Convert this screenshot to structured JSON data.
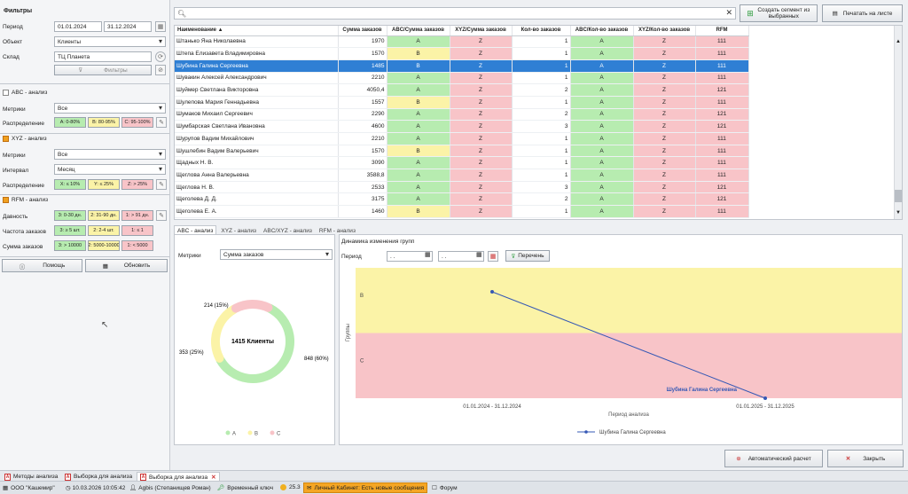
{
  "filters": {
    "title": "Фильтры",
    "period_label": "Период",
    "date_from": "01.01.2024",
    "date_to": "31.12.2024",
    "object_label": "Объект",
    "object_value": "Клиенты",
    "warehouse_label": "Склад",
    "warehouse_value": "ТЦ Планета",
    "filters_button": "Фильтры"
  },
  "abc": {
    "title": "ABC - анализ",
    "metrics_label": "Метрики",
    "metrics_value": "Все",
    "distribution_label": "Распределение",
    "chips": [
      "A: 0-80%",
      "B: 80-95%",
      "C: 95-100%"
    ]
  },
  "xyz": {
    "title": "XYZ - анализ",
    "metrics_label": "Метрики",
    "metrics_value": "Все",
    "interval_label": "Интервал",
    "interval_value": "Месяц",
    "distribution_label": "Распределение",
    "chips": [
      "X: ≤ 10%",
      "Y: ≤ 25%",
      "Z: > 25%"
    ]
  },
  "rfm": {
    "title": "RFM - анализ",
    "recency_label": "Давность",
    "recency_chips": [
      "3: 0-30 дн.",
      "2: 31-90 дн.",
      "1: > 91 дн."
    ],
    "frequency_label": "Частота заказов",
    "frequency_chips": [
      "3: ≥ 5 шт.",
      "2: 2-4 шт.",
      "1: ≤ 1"
    ],
    "monetary_label": "Сумма заказов",
    "monetary_chips": [
      "3: > 10000",
      "2: 5000-10000",
      "1: < 5000"
    ]
  },
  "actions": {
    "help": "Помощь",
    "refresh": "Обновить"
  },
  "toolbar": {
    "create_segment": "Создать сегмент из выбранных",
    "print_sheet": "Печатать на листе",
    "search_placeholder": ""
  },
  "table": {
    "columns": [
      "Наименование ▲",
      "Сумма заказов",
      "ABC/Сумма заказов",
      "XYZ/Сумма заказов",
      "Кол-во заказов",
      "ABC/Кол-во заказов",
      "XYZ/Кол-во заказов",
      "RFM"
    ],
    "rows": [
      {
        "name": "Штанько Яна Николаевна",
        "sum": "1970",
        "abc_sum": "A",
        "xyz_sum": "Z",
        "count": "1",
        "abc_count": "A",
        "xyz_count": "Z",
        "rfm": "111"
      },
      {
        "name": "Штепа Елизавета Владимировна",
        "sum": "1570",
        "abc_sum": "B",
        "xyz_sum": "Z",
        "count": "1",
        "abc_count": "A",
        "xyz_count": "Z",
        "rfm": "111"
      },
      {
        "name": "Шубина Галина Сергеевна",
        "sum": "1485",
        "abc_sum": "B",
        "xyz_sum": "Z",
        "count": "1",
        "abc_count": "A",
        "xyz_count": "Z",
        "rfm": "111"
      },
      {
        "name": "Шувакин Алексей Александрович",
        "sum": "2210",
        "abc_sum": "A",
        "xyz_sum": "Z",
        "count": "1",
        "abc_count": "A",
        "xyz_count": "Z",
        "rfm": "111"
      },
      {
        "name": "Шуймер Светлана Викторовна",
        "sum": "4050,4",
        "abc_sum": "A",
        "xyz_sum": "Z",
        "count": "2",
        "abc_count": "A",
        "xyz_count": "Z",
        "rfm": "121"
      },
      {
        "name": "Шулепова Мария Геннадьевна",
        "sum": "1557",
        "abc_sum": "B",
        "xyz_sum": "Z",
        "count": "1",
        "abc_count": "A",
        "xyz_count": "Z",
        "rfm": "111"
      },
      {
        "name": "Шумаков Михаил Сергеевич",
        "sum": "2290",
        "abc_sum": "A",
        "xyz_sum": "Z",
        "count": "2",
        "abc_count": "A",
        "xyz_count": "Z",
        "rfm": "121"
      },
      {
        "name": "Шумбарская Светлана Ивановна",
        "sum": "4600",
        "abc_sum": "A",
        "xyz_sum": "Z",
        "count": "3",
        "abc_count": "A",
        "xyz_count": "Z",
        "rfm": "121"
      },
      {
        "name": "Шурупов Вадим Михайлович",
        "sum": "2210",
        "abc_sum": "A",
        "xyz_sum": "Z",
        "count": "1",
        "abc_count": "A",
        "xyz_count": "Z",
        "rfm": "111"
      },
      {
        "name": "Шушлебин Вадим Валерьевич",
        "sum": "1570",
        "abc_sum": "B",
        "xyz_sum": "Z",
        "count": "1",
        "abc_count": "A",
        "xyz_count": "Z",
        "rfm": "111"
      },
      {
        "name": "Щадных Н. В.",
        "sum": "3090",
        "abc_sum": "A",
        "xyz_sum": "Z",
        "count": "1",
        "abc_count": "A",
        "xyz_count": "Z",
        "rfm": "111"
      },
      {
        "name": "Щеглова Анна Валерьевна",
        "sum": "3588,8",
        "abc_sum": "A",
        "xyz_sum": "Z",
        "count": "1",
        "abc_count": "A",
        "xyz_count": "Z",
        "rfm": "111"
      },
      {
        "name": "Щеглова Н. В.",
        "sum": "2533",
        "abc_sum": "A",
        "xyz_sum": "Z",
        "count": "3",
        "abc_count": "A",
        "xyz_count": "Z",
        "rfm": "121"
      },
      {
        "name": "Щеголева Д. Д.",
        "sum": "3175",
        "abc_sum": "A",
        "xyz_sum": "Z",
        "count": "2",
        "abc_count": "A",
        "xyz_count": "Z",
        "rfm": "121"
      },
      {
        "name": "Щеголева Е. А.",
        "sum": "1460",
        "abc_sum": "B",
        "xyz_sum": "Z",
        "count": "1",
        "abc_count": "A",
        "xyz_count": "Z",
        "rfm": "111"
      }
    ],
    "selected_index": 2
  },
  "tabs": [
    "ABC - анализ",
    "XYZ - анализ",
    "ABC/XYZ - анализ",
    "RFM - анализ"
  ],
  "donut": {
    "metrics_label": "Метрики",
    "metrics_value": "Сумма заказов",
    "center_label": "1415 Клиенты",
    "legend": [
      "A",
      "B",
      "C"
    ]
  },
  "dynamics": {
    "title": "Динамика изменения групп",
    "period_label": "Период",
    "date_from": ". .",
    "date_to": ". .",
    "list_button": "Перечень"
  },
  "chart_data": [
    {
      "type": "pie",
      "categories": [
        "A",
        "B",
        "C"
      ],
      "values": [
        848,
        353,
        214
      ],
      "labels": [
        "848 (60%)",
        "353 (25%)",
        "214 (15%)"
      ],
      "center": "1415 Клиенты"
    },
    {
      "type": "line",
      "title": "Динамика изменения групп",
      "xlabel": "Период анализа",
      "ylabel": "Группы",
      "categories": [
        "01.01.2024 - 31.12.2024",
        "01.01.2025 - 31.12.2025"
      ],
      "bands": [
        "B",
        "C"
      ],
      "series": [
        {
          "name": "Шубина Галина Сергеевна",
          "values": [
            "B",
            "C"
          ]
        }
      ],
      "annotation": "Шубина Галина Сергеевна"
    }
  ],
  "bottom": {
    "auto_calc": "Автоматический расчет",
    "close": "Закрыть"
  },
  "doc_tabs": [
    "Методы анализа",
    "Выборка для анализа",
    "Выборка для анализа"
  ],
  "status": {
    "org": "ООО \"Кашемир\"",
    "datetime": "10.03.2026 10:05:42",
    "user": "Agbis (Степанищев Роман)",
    "key": "Временный ключ",
    "version": "25.3",
    "cabinet": "Личный Кабинет: Есть новые сообщения",
    "forum": "Форум"
  },
  "colors": {
    "green": "#b7ecb0",
    "yellow": "#fbf3a7",
    "red": "#f8c4c8",
    "selection": "#2f7fd4",
    "line": "#3558b5"
  }
}
